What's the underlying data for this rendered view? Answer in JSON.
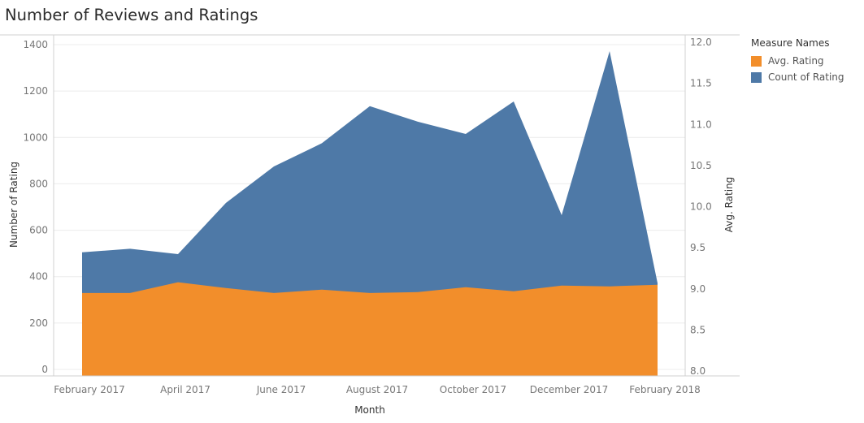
{
  "title": "Number of Reviews and Ratings",
  "legend": {
    "title": "Measure Names",
    "items": [
      {
        "label": "Avg. Rating",
        "color": "#f28e2b"
      },
      {
        "label": "Count of Rating",
        "color": "#4e79a7"
      }
    ]
  },
  "chart_data": {
    "type": "area",
    "title": "Number of Reviews and Ratings",
    "xlabel": "Month",
    "ylabel": "Number of Rating",
    "y2label": "Avg. Rating",
    "x": [
      "Feb 2017",
      "Mar 2017",
      "Apr 2017",
      "May 2017",
      "Jun 2017",
      "Jul 2017",
      "Aug 2017",
      "Sep 2017",
      "Oct 2017",
      "Nov 2017",
      "Dec 2017",
      "Jan 2018",
      "Feb 2018"
    ],
    "x_tick_labels": [
      "February 2017",
      "April 2017",
      "June 2017",
      "August 2017",
      "October 2017",
      "December 2017",
      "February 2018"
    ],
    "x_tick_indices": [
      0,
      2,
      4,
      6,
      8,
      10,
      12
    ],
    "ylim": [
      0,
      1400
    ],
    "yticks": [
      0,
      200,
      400,
      600,
      800,
      1000,
      1200,
      1400
    ],
    "y2lim": [
      8.0,
      12.0
    ],
    "y2ticks": [
      "8.0",
      "8.5",
      "9.0",
      "9.5",
      "10.0",
      "10.5",
      "11.0",
      "11.5",
      "12.0"
    ],
    "series": [
      {
        "name": "Count of Rating",
        "axis": "left",
        "color": "#4e79a7",
        "values": [
          505,
          520,
          497,
          718,
          875,
          975,
          1135,
          1068,
          1015,
          1155,
          665,
          1372,
          372
        ]
      },
      {
        "name": "Avg. Rating",
        "axis": "right",
        "color": "#f28e2b",
        "values": [
          8.95,
          8.95,
          9.08,
          9.01,
          8.95,
          8.99,
          8.95,
          8.96,
          9.02,
          8.97,
          9.04,
          9.03,
          9.05
        ]
      }
    ],
    "grid": true,
    "legend_position": "right"
  }
}
